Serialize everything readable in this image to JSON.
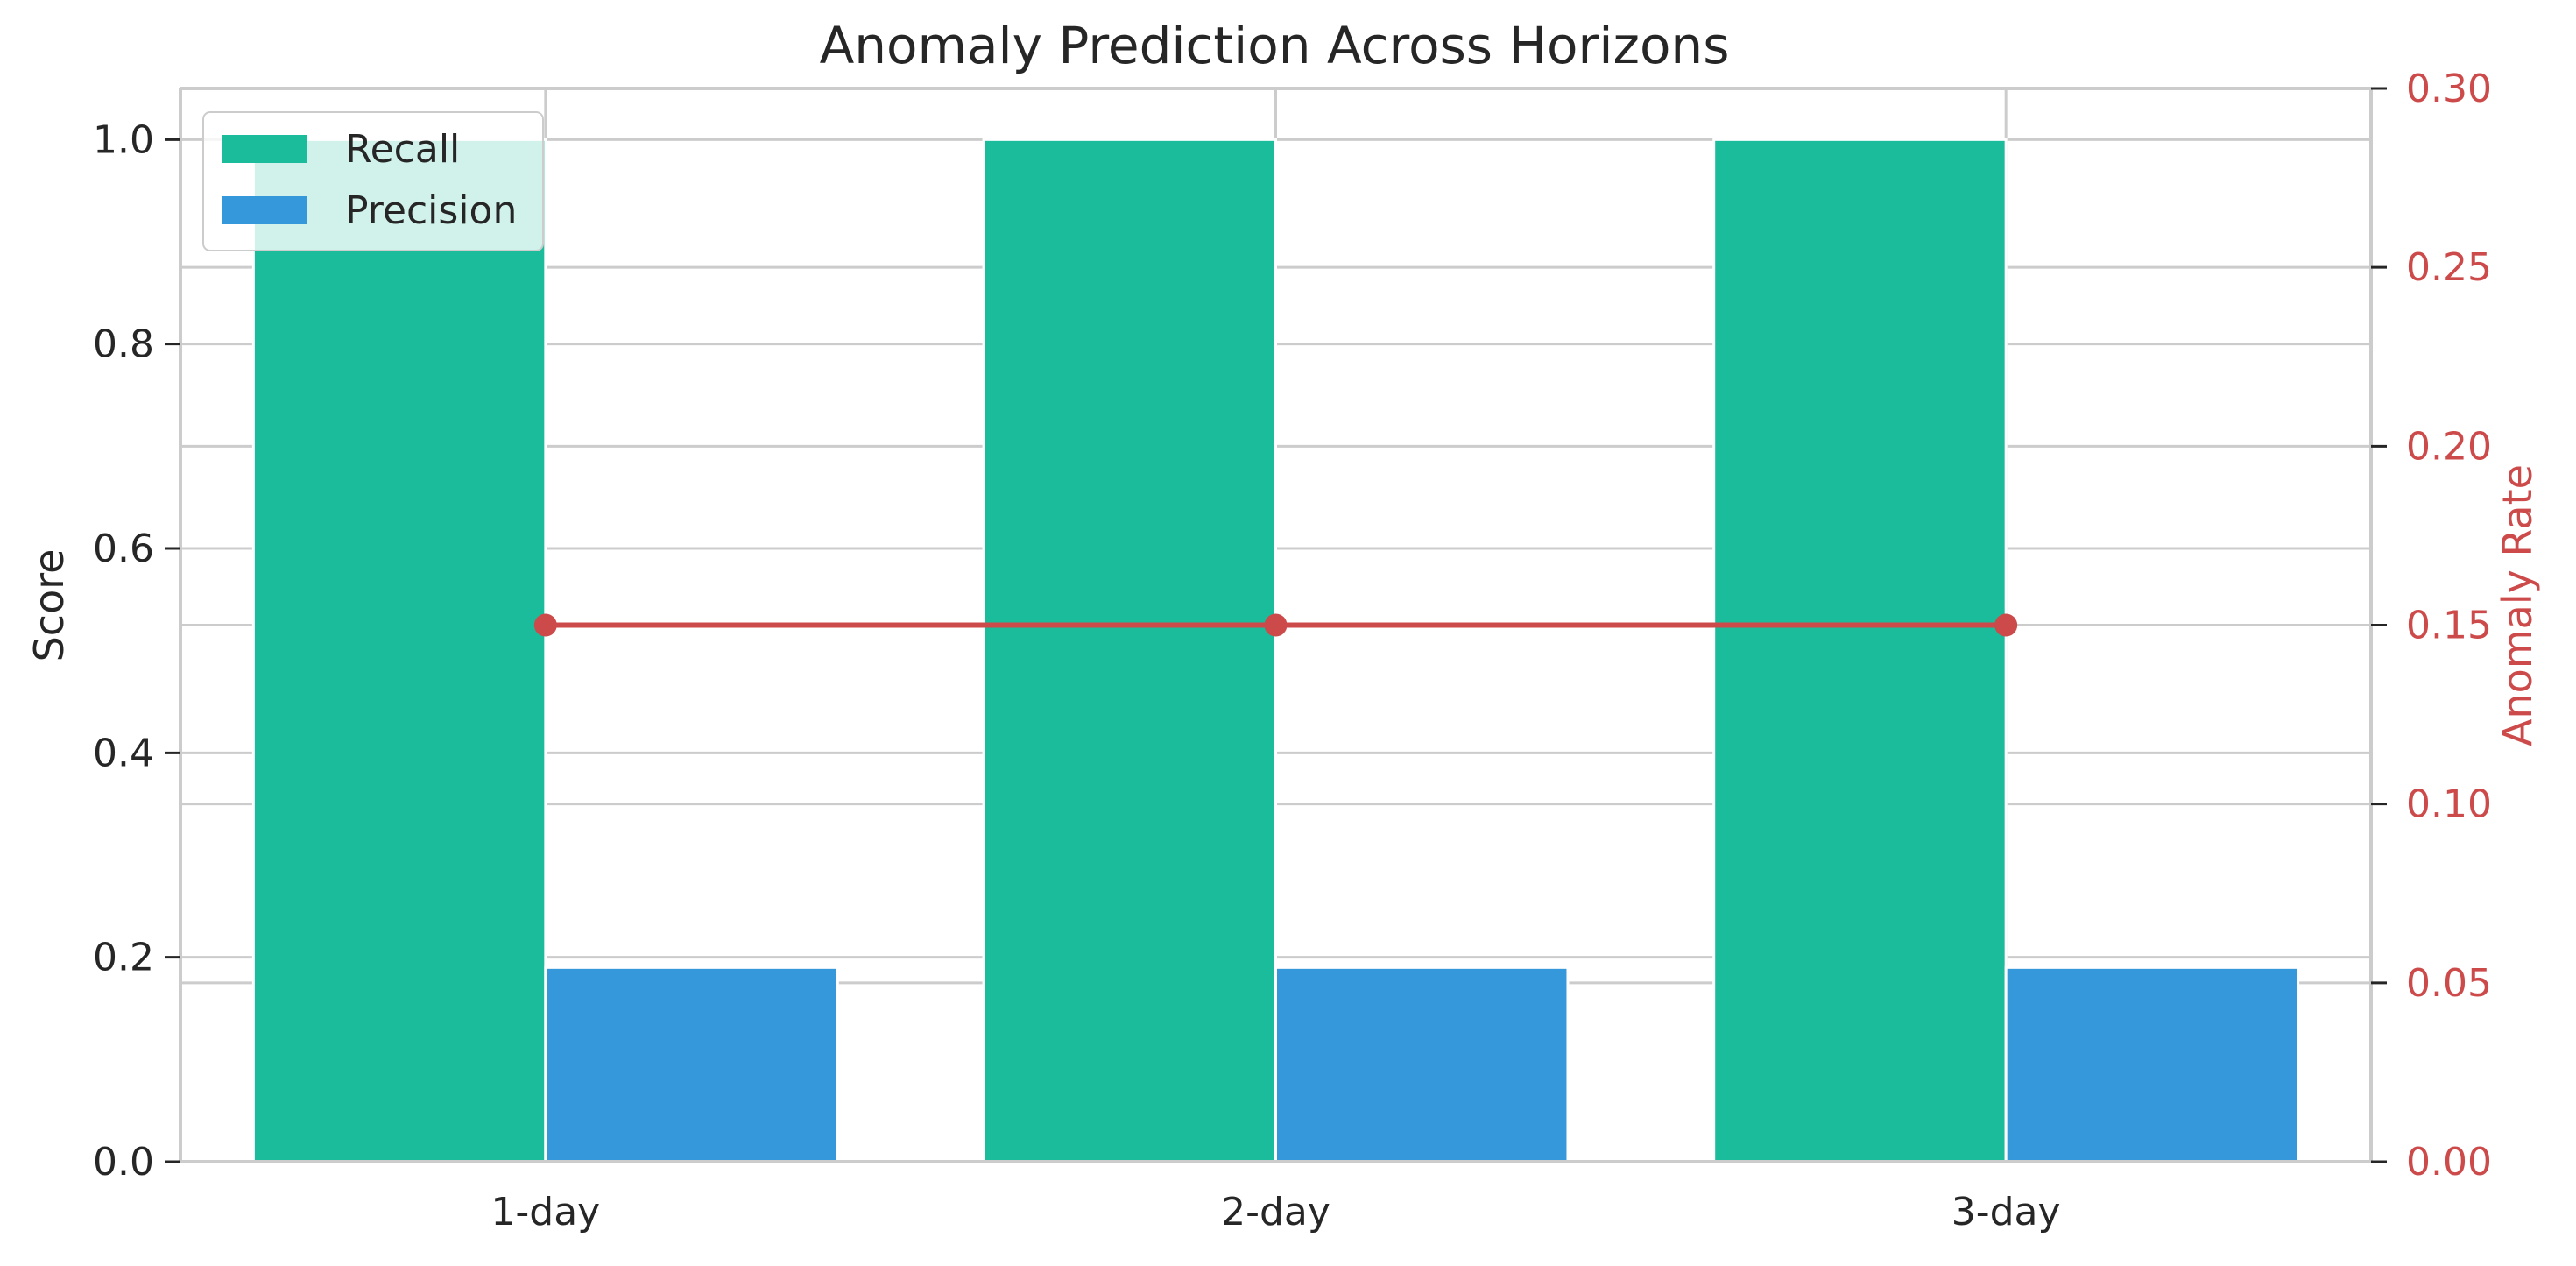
{
  "chart_data": {
    "type": "bar",
    "title": "Anomaly Prediction Across Horizons",
    "xlabel": "",
    "ylabel": "Score",
    "y2label": "Anomaly Rate",
    "categories": [
      "1-day",
      "2-day",
      "3-day"
    ],
    "ylim": [
      0,
      1.05
    ],
    "y2lim": [
      0,
      0.3
    ],
    "yticks": [
      "0.0",
      "0.2",
      "0.4",
      "0.6",
      "0.8",
      "1.0"
    ],
    "y2ticks": [
      "0.00",
      "0.05",
      "0.10",
      "0.15",
      "0.20",
      "0.25",
      "0.30"
    ],
    "grid": true,
    "legend_position": "top-left",
    "series": [
      {
        "name": "Recall",
        "type": "bar",
        "axis": "left",
        "values": [
          1.0,
          1.0,
          1.0
        ],
        "color": "#1abc9c"
      },
      {
        "name": "Precision",
        "type": "bar",
        "axis": "left",
        "values": [
          0.19,
          0.19,
          0.19
        ],
        "color": "#3498db"
      },
      {
        "type": "line",
        "axis": "right",
        "values": [
          0.15,
          0.15,
          0.15
        ],
        "color": "#cd4a4a"
      }
    ],
    "right_axis_color": "#cd4a4a"
  }
}
